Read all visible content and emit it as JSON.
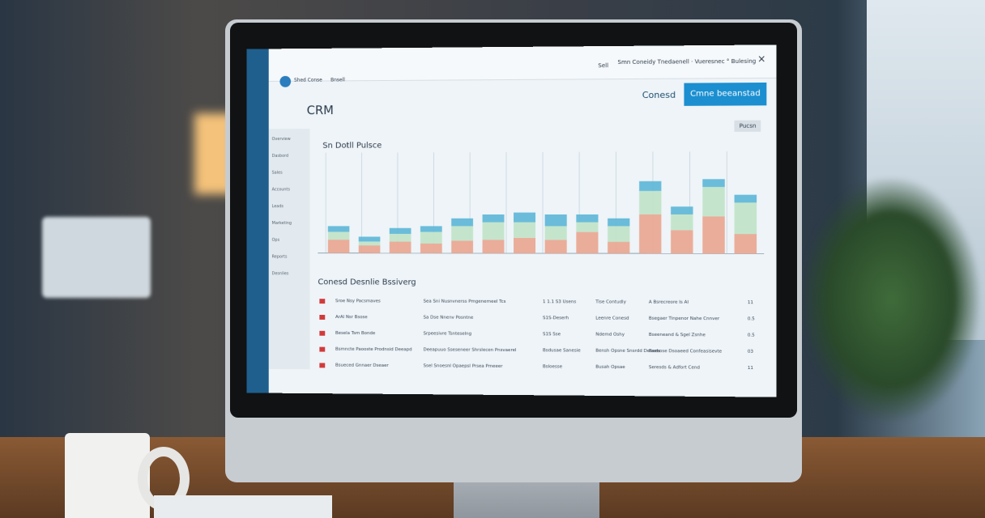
{
  "topbar": {
    "app": "Shed Conse",
    "crumb": "Bnsell",
    "user": "Sell",
    "notice": "Smn Coneidy Tnedaenell · Vueresnec ° Bulesing"
  },
  "header": {
    "title": "CRM",
    "secondary_button": "Conesd",
    "primary_button": "Cmne beeanstad",
    "filter": "Pucsn"
  },
  "menu": [
    "Overview",
    "Dasbord",
    "Sales",
    "Accounts",
    "Leads",
    "Marketing",
    "Ops",
    "Reports",
    "Desnlies"
  ],
  "chart": {
    "title": "Sn Dotll Pulsce",
    "ylim": [
      0,
      100
    ],
    "series": [
      {
        "color": "#e9a58f",
        "values": [
          14,
          8,
          12,
          10,
          13,
          14,
          16,
          14,
          22,
          12,
          40,
          24,
          38,
          20
        ]
      },
      {
        "color": "#bfe3c7",
        "values": [
          8,
          4,
          8,
          12,
          15,
          18,
          16,
          14,
          10,
          16,
          24,
          16,
          30,
          32
        ]
      },
      {
        "color": "#5bb6d6",
        "values": [
          6,
          5,
          6,
          6,
          8,
          8,
          10,
          12,
          8,
          8,
          10,
          8,
          8,
          8
        ]
      }
    ]
  },
  "table": {
    "title": "Conesd Desnlie Bssiverg",
    "rows": [
      [
        "Sroe Nsy Pacsmaves",
        "Sea Sni Nusnvnerss Pmgenerneel Tcs",
        "1 1.1 S3 Usens",
        "Tise Contudly",
        "A Bsrecreore Is AI",
        "11"
      ],
      [
        "ArAl Nsr Bsose",
        "Sa Dse Nnenv Posntne",
        "S1S-Deserh",
        "Leenre Conesd",
        "Bsegaer Tinpenor Nahe Cnnver",
        "0.5"
      ],
      [
        "Besela Tsm Bonde",
        "Srpeesivre Tsnteselng",
        "S1S Sse",
        "Ndemd Oshy",
        "Bseeneand & Sgel Zsnhe",
        "0.5"
      ],
      [
        "Bsmncte Paooste Prodnsid Deeapd",
        "Deeapuuo Sseseneer Shrslecen Pnsvaerel",
        "Bsdusae Sanesie",
        "Bensh Opsne Snsrdd Deseds",
        "Bsesose Dsoaeed Confeasisevte",
        "03"
      ],
      [
        "Bsueced Gnnaer Dseaer",
        "Ssel Snoesnl Opaepsl Prsea Pmeeer",
        "Bsloesse",
        "Busah Opsae",
        "Seresds & Adfort Cend",
        "11"
      ]
    ]
  }
}
